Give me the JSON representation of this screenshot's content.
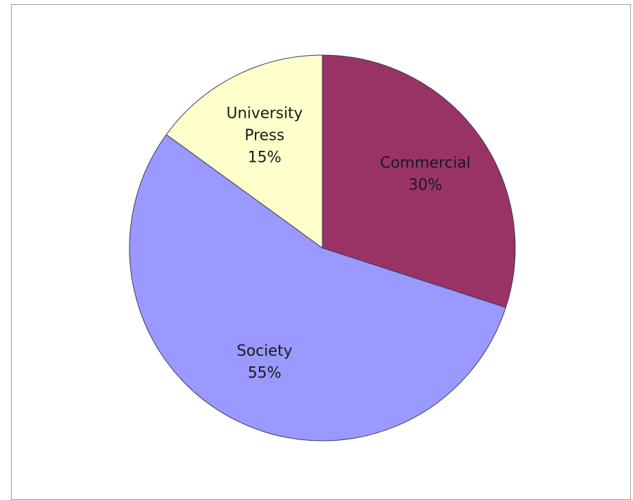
{
  "chart_data": {
    "type": "pie",
    "title": "",
    "start_angle_deg": 0,
    "direction": "clockwise",
    "slices": [
      {
        "name": "Commercial",
        "value": 30,
        "label": "30%",
        "color": "#993366"
      },
      {
        "name": "Society",
        "value": 55,
        "label": "55%",
        "color": "#9999ff"
      },
      {
        "name": "University Press",
        "label_lines": [
          "University",
          "Press"
        ],
        "value": 15,
        "label": "15%",
        "color": "#ffffcc"
      }
    ],
    "legend": "none"
  }
}
